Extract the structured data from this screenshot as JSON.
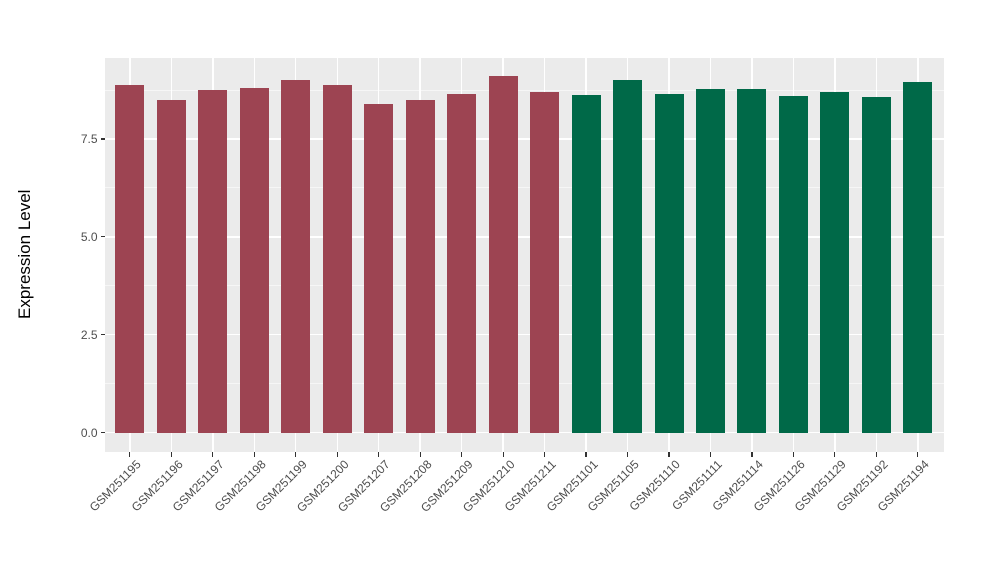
{
  "chart_data": {
    "type": "bar",
    "title": "",
    "xlabel": "",
    "ylabel": "Expression Level",
    "ylim": [
      0,
      9.57
    ],
    "y_ticks": [
      {
        "value": 0.0,
        "label": "0.0"
      },
      {
        "value": 2.5,
        "label": "2.5"
      },
      {
        "value": 5.0,
        "label": "5.0"
      },
      {
        "value": 7.5,
        "label": "7.5"
      }
    ],
    "y_minor_ticks": [
      1.25,
      3.75,
      6.25,
      8.75
    ],
    "grid": "white major and minor gridlines on gray panel",
    "legend_position": "none",
    "bar_width_fraction": 0.7,
    "samples": [
      {
        "id": "GSM251195",
        "value": 8.88,
        "group": "red"
      },
      {
        "id": "GSM251196",
        "value": 8.5,
        "group": "red"
      },
      {
        "id": "GSM251197",
        "value": 8.76,
        "group": "red"
      },
      {
        "id": "GSM251198",
        "value": 8.8,
        "group": "red"
      },
      {
        "id": "GSM251199",
        "value": 9.01,
        "group": "red"
      },
      {
        "id": "GSM251200",
        "value": 8.88,
        "group": "red"
      },
      {
        "id": "GSM251207",
        "value": 8.39,
        "group": "red"
      },
      {
        "id": "GSM251208",
        "value": 8.5,
        "group": "red"
      },
      {
        "id": "GSM251209",
        "value": 8.65,
        "group": "red"
      },
      {
        "id": "GSM251210",
        "value": 9.12,
        "group": "red"
      },
      {
        "id": "GSM251211",
        "value": 8.7,
        "group": "red"
      },
      {
        "id": "GSM251101",
        "value": 8.62,
        "group": "green"
      },
      {
        "id": "GSM251105",
        "value": 9.0,
        "group": "green"
      },
      {
        "id": "GSM251110",
        "value": 8.65,
        "group": "green"
      },
      {
        "id": "GSM251111",
        "value": 8.78,
        "group": "green"
      },
      {
        "id": "GSM251114",
        "value": 8.78,
        "group": "green"
      },
      {
        "id": "GSM251126",
        "value": 8.61,
        "group": "green"
      },
      {
        "id": "GSM251129",
        "value": 8.7,
        "group": "green"
      },
      {
        "id": "GSM251192",
        "value": 8.58,
        "group": "green"
      },
      {
        "id": "GSM251194",
        "value": 8.96,
        "group": "green"
      }
    ],
    "group_colors": {
      "red": "#9D4452",
      "green": "#006948"
    },
    "style": {
      "panel_bg": "#EBEBEB",
      "grid_major_color": "#FFFFFF",
      "grid_minor_color": "#F4F4F4",
      "axis_text_color": "#4D4D4D",
      "axis_title_color": "#000000",
      "tick_mark_color": "#333333",
      "page_bg": "#FFFFFF"
    }
  }
}
